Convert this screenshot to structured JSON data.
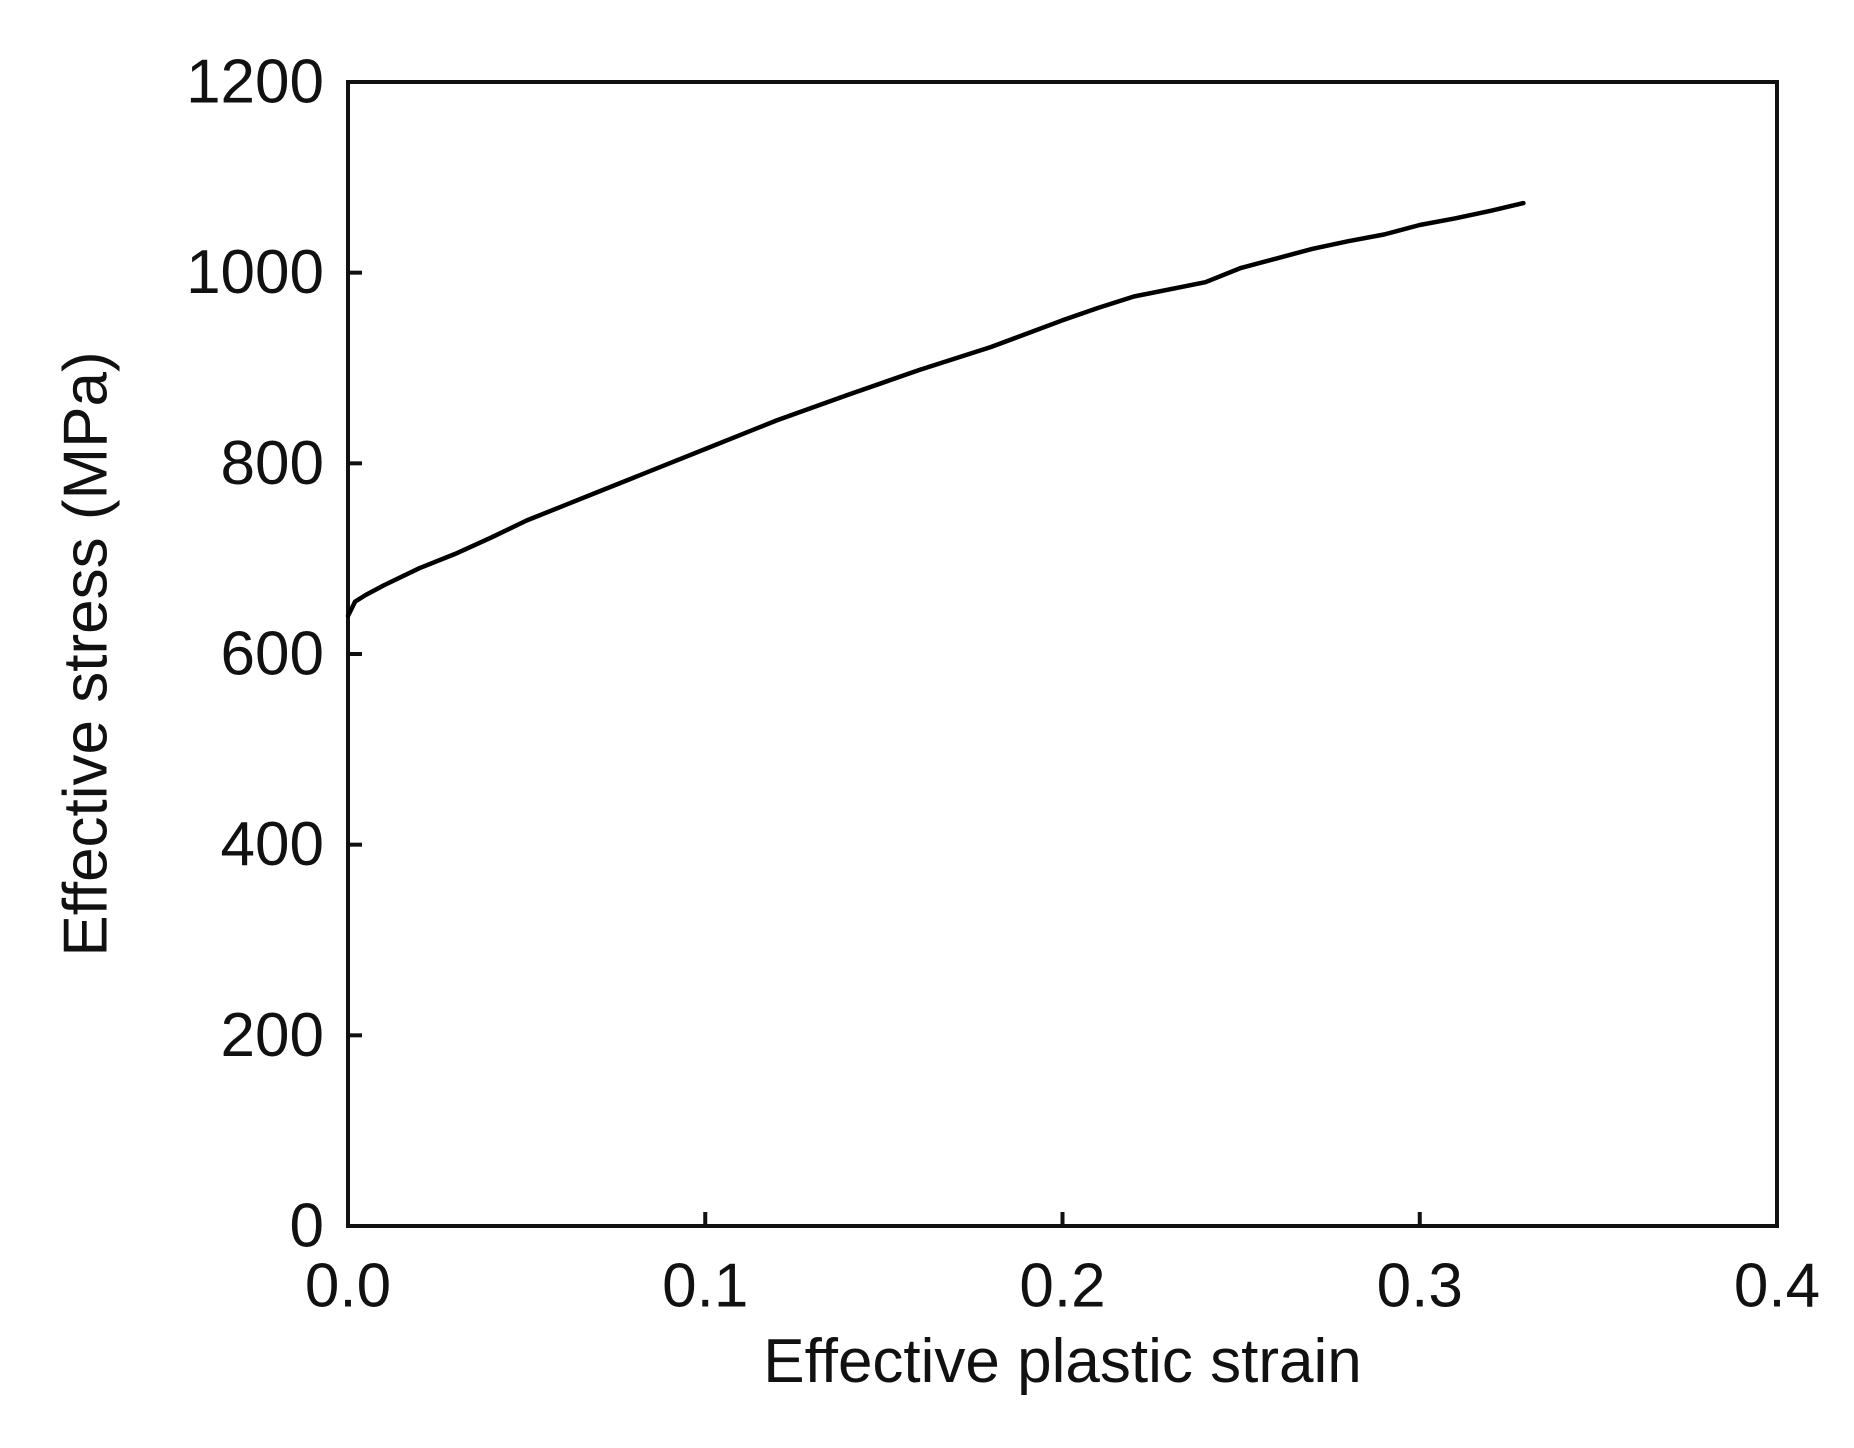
{
  "chart_data": {
    "type": "line",
    "title": "",
    "xlabel": "Effective plastic strain",
    "ylabel": "Effective stress (MPa)",
    "xlim": [
      0.0,
      0.4
    ],
    "ylim": [
      0,
      1200
    ],
    "x_ticks": [
      "0.0",
      "0.1",
      "0.2",
      "0.3",
      "0.4"
    ],
    "y_ticks": [
      "0",
      "200",
      "400",
      "600",
      "800",
      "1000",
      "1200"
    ],
    "grid": false,
    "legend": "none",
    "line_color": "#000000",
    "series": [
      {
        "x": [
          0.0,
          0.002,
          0.005,
          0.01,
          0.02,
          0.03,
          0.04,
          0.05,
          0.06,
          0.07,
          0.08,
          0.09,
          0.1,
          0.11,
          0.12,
          0.14,
          0.16,
          0.18,
          0.2,
          0.21,
          0.22,
          0.24,
          0.25,
          0.26,
          0.27,
          0.28,
          0.29,
          0.3,
          0.31,
          0.32,
          0.329
        ],
        "y": [
          640,
          655,
          662,
          672,
          690,
          705,
          722,
          740,
          755,
          770,
          785,
          800,
          815,
          830,
          845,
          872,
          898,
          922,
          950,
          963,
          975,
          990,
          1005,
          1015,
          1025,
          1033,
          1040,
          1050,
          1057,
          1065,
          1073
        ]
      }
    ]
  }
}
